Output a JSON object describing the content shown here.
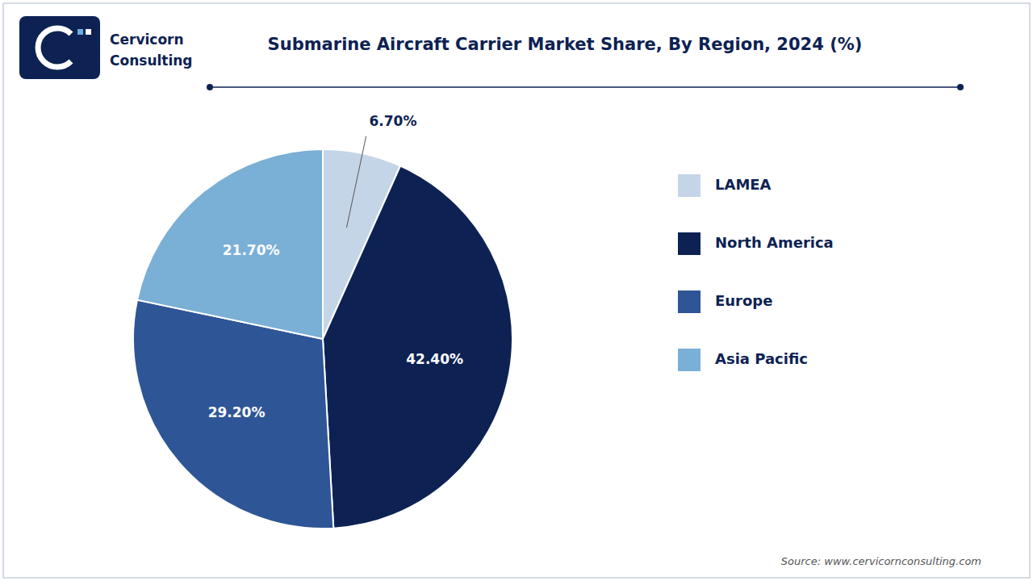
{
  "chart_data": {
    "type": "pie",
    "title": "Submarine Aircraft Carrier Market Share, By Region, 2024 (%)",
    "categories": [
      "LAMEA",
      "North America",
      "Europe",
      "Asia Pacific"
    ],
    "values": [
      6.7,
      42.4,
      29.2,
      21.7
    ],
    "value_labels": [
      "6.70%",
      "42.40%",
      "29.20%",
      "21.70%"
    ],
    "colors": [
      "#c5d5e8",
      "#0d2253",
      "#2e5596",
      "#7aafd6"
    ],
    "data_labels": true,
    "legend": "right",
    "annotations": [
      "Cervicorn",
      "Consulting",
      "Source: www.cervicornconsulting.com"
    ]
  }
}
